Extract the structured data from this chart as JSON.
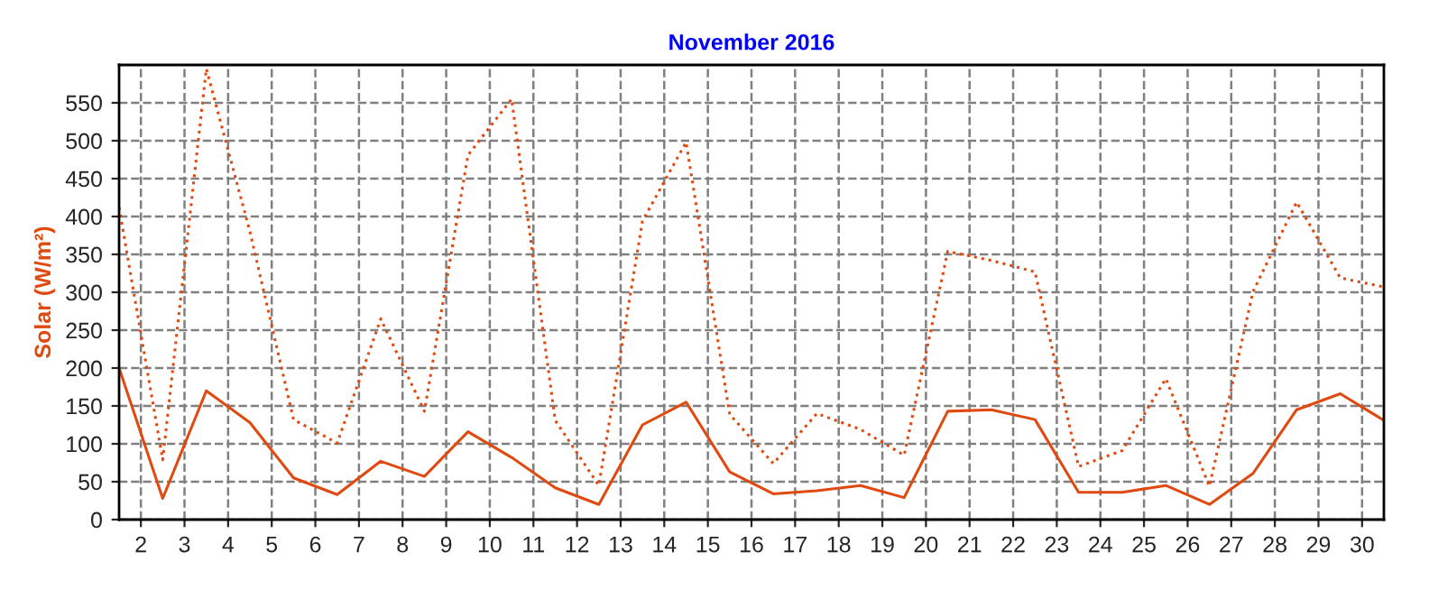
{
  "chart_data": {
    "type": "line",
    "title": "November 2016",
    "ylabel": "Solar (W/m²)",
    "x": [
      1.5,
      2.5,
      3.5,
      4.5,
      5.5,
      6.5,
      7.5,
      8.5,
      9.5,
      10.5,
      11.5,
      12.5,
      13.5,
      14.5,
      15.5,
      16.5,
      17.5,
      18.5,
      19.5,
      20.5,
      21.5,
      22.5,
      23.5,
      24.5,
      25.5,
      26.5,
      27.5,
      28.5,
      29.5,
      30.5
    ],
    "series": [
      {
        "color": "#e04a10",
        "line_style": "dotted",
        "values": [
          412,
          79,
          595,
          380,
          132,
          101,
          265,
          143,
          481,
          555,
          131,
          45,
          394,
          498,
          139,
          74,
          140,
          119,
          85,
          354,
          342,
          327,
          70,
          91,
          186,
          44,
          301,
          419,
          319,
          307
        ]
      },
      {
        "color": "#e04a10",
        "line_style": "solid",
        "values": [
          200,
          28,
          170,
          128,
          55,
          33,
          77,
          57,
          116,
          82,
          42,
          20,
          125,
          155,
          63,
          34,
          38,
          45,
          29,
          143,
          145,
          132,
          36,
          36,
          45,
          20,
          61,
          145,
          166,
          131
        ]
      }
    ],
    "xlim": [
      1.5,
      30.5
    ],
    "xticks": [
      2,
      3,
      4,
      5,
      6,
      7,
      8,
      9,
      10,
      11,
      12,
      13,
      14,
      15,
      16,
      17,
      18,
      19,
      20,
      21,
      22,
      23,
      24,
      25,
      26,
      27,
      28,
      29,
      30
    ],
    "ylim": [
      0,
      600
    ],
    "yticks": [
      0,
      50,
      100,
      150,
      200,
      250,
      300,
      350,
      400,
      450,
      500,
      550
    ],
    "grid": true,
    "marker": "none"
  }
}
